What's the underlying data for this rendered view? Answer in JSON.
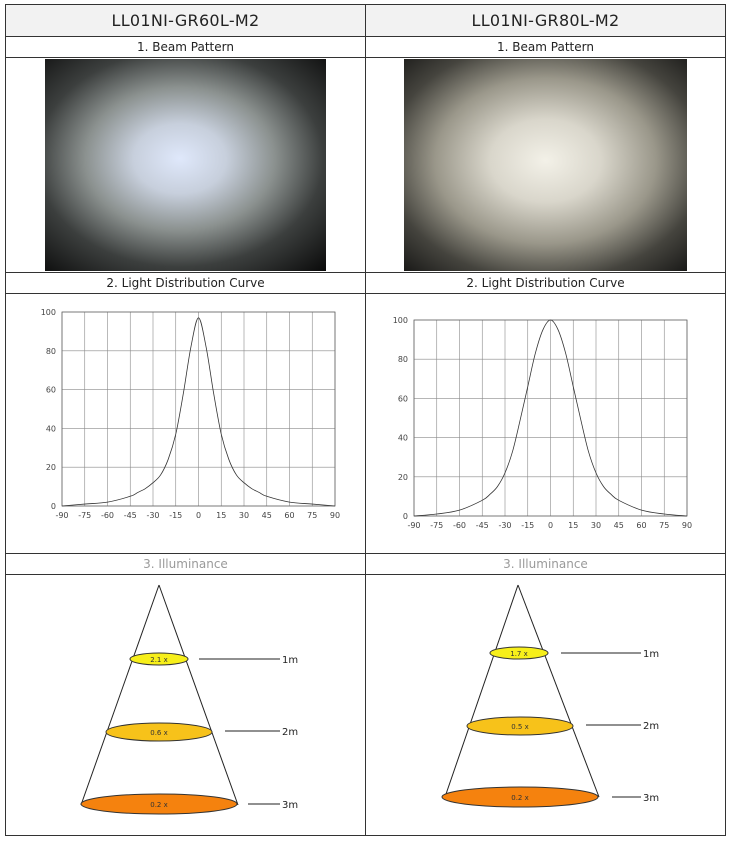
{
  "columns": [
    {
      "model": "LL01NI-GR60L-M2",
      "beam_title": "1. Beam Pattern",
      "curve_title": "2. Light Distribution Curve",
      "illum_title": "3. Illuminance",
      "beam_tint": "#dfe8fb",
      "chart_data": {
        "type": "line",
        "title": "2. Light Distribution Curve",
        "xlabel": "",
        "ylabel": "",
        "xlim": [
          -90,
          90
        ],
        "ylim": [
          0,
          100
        ],
        "grid": true,
        "x_ticks": [
          "-90",
          "-75",
          "-60",
          "-45",
          "-30",
          "-15",
          "0",
          "15",
          "30",
          "45",
          "60",
          "75",
          "90"
        ],
        "y_ticks": [
          "0",
          "20",
          "40",
          "60",
          "80",
          "100"
        ],
        "x": [
          -90,
          -75,
          -60,
          -45,
          -40,
          -35,
          -30,
          -25,
          -20,
          -15,
          -10,
          -5,
          0,
          5,
          10,
          15,
          20,
          25,
          30,
          35,
          40,
          45,
          60,
          75,
          90
        ],
        "values": [
          0,
          1,
          2,
          5,
          7,
          9,
          12,
          16,
          24,
          37,
          58,
          82,
          97,
          82,
          58,
          37,
          24,
          16,
          12,
          9,
          7,
          5,
          2,
          1,
          0
        ]
      },
      "illuminance": [
        {
          "label": "2.1 x",
          "distance": "1m"
        },
        {
          "label": "0.6 x",
          "distance": "2m"
        },
        {
          "label": "0.2 x",
          "distance": "3m"
        }
      ]
    },
    {
      "model": "LL01NI-GR80L-M2",
      "beam_title": "1. Beam Pattern",
      "curve_title": "2. Light Distribution Curve",
      "illum_title": "3. Illuminance",
      "beam_tint": "#f3f1e8",
      "chart_data": {
        "type": "line",
        "title": "2. Light Distribution Curve",
        "xlabel": "",
        "ylabel": "",
        "xlim": [
          -90,
          90
        ],
        "ylim": [
          0,
          100
        ],
        "grid": true,
        "x_ticks": [
          "-90",
          "-75",
          "-60",
          "-45",
          "-30",
          "-15",
          "0",
          "15",
          "30",
          "45",
          "60",
          "75",
          "90"
        ],
        "y_ticks": [
          "0",
          "20",
          "40",
          "60",
          "80",
          "100"
        ],
        "x": [
          -90,
          -75,
          -60,
          -45,
          -40,
          -35,
          -30,
          -25,
          -20,
          -15,
          -10,
          -5,
          0,
          5,
          10,
          15,
          20,
          25,
          30,
          35,
          40,
          45,
          60,
          75,
          90
        ],
        "values": [
          0,
          1,
          3,
          8,
          11,
          15,
          22,
          33,
          49,
          66,
          83,
          95,
          100,
          95,
          83,
          66,
          49,
          33,
          22,
          15,
          11,
          8,
          3,
          1,
          0
        ]
      },
      "illuminance": [
        {
          "label": "1.7 x",
          "distance": "1m"
        },
        {
          "label": "0.5 x",
          "distance": "2m"
        },
        {
          "label": "0.2 x",
          "distance": "3m"
        }
      ]
    }
  ],
  "colors": {
    "level1": "#f7ef1a",
    "level2": "#f7c21a",
    "level3": "#f5820e",
    "line": "#333333",
    "grid": "#8a8a8a"
  }
}
